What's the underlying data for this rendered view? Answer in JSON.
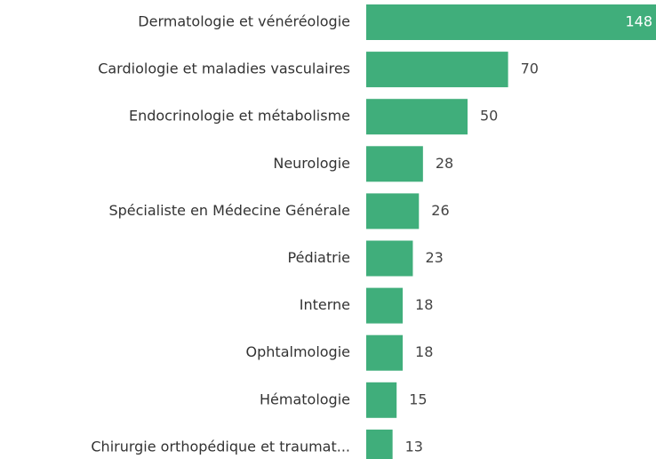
{
  "chart_data": {
    "type": "bar",
    "orientation": "horizontal",
    "categories": [
      "Dermatologie et vénéréologie",
      "Cardiologie et maladies vasculaires",
      "Endocrinologie et métabolisme",
      "Neurologie",
      "Spécialiste en Médecine Générale",
      "Pédiatrie",
      "Interne",
      "Ophtalmologie",
      "Hématologie",
      "Chirurgie orthopédique et traumat..."
    ],
    "values": [
      148,
      70,
      50,
      28,
      26,
      23,
      18,
      18,
      15,
      13
    ],
    "color": "#40ae7b"
  }
}
